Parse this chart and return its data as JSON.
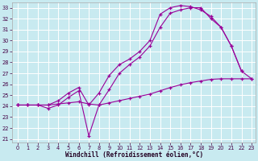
{
  "bg_color": "#c8eaf0",
  "grid_color": "#ffffff",
  "line_color": "#990099",
  "xlabel": "Windchill (Refroidissement éolien,°C)",
  "xlim_min": -0.5,
  "xlim_max": 23.4,
  "ylim_min": 20.7,
  "ylim_max": 33.5,
  "xticks": [
    0,
    1,
    2,
    3,
    4,
    5,
    6,
    7,
    8,
    9,
    10,
    11,
    12,
    13,
    14,
    15,
    16,
    17,
    18,
    19,
    20,
    21,
    22,
    23
  ],
  "yticks": [
    21,
    22,
    23,
    24,
    25,
    26,
    27,
    28,
    29,
    30,
    31,
    32,
    33
  ],
  "line1": {
    "x": [
      0,
      1,
      2,
      3,
      4,
      5,
      6,
      7,
      8,
      9,
      10,
      11,
      12,
      13,
      14,
      15,
      16,
      17,
      18,
      19,
      20,
      21,
      22,
      23
    ],
    "y": [
      24.1,
      24.1,
      24.1,
      24.1,
      24.2,
      24.3,
      24.4,
      24.2,
      24.1,
      24.3,
      24.5,
      24.7,
      24.9,
      25.1,
      25.4,
      25.7,
      25.95,
      26.15,
      26.3,
      26.45,
      26.5,
      26.5,
      26.5,
      26.5
    ]
  },
  "line2": {
    "x": [
      0,
      1,
      2,
      3,
      4,
      5,
      6,
      7,
      8,
      9,
      10,
      11,
      12,
      13,
      14,
      15,
      16,
      17,
      18,
      19,
      20,
      21,
      22
    ],
    "y": [
      24.1,
      24.1,
      24.1,
      23.8,
      24.1,
      24.8,
      25.4,
      21.3,
      24.1,
      25.5,
      27.0,
      27.8,
      28.5,
      29.5,
      31.2,
      32.5,
      32.8,
      33.0,
      33.0,
      32.0,
      31.2,
      29.5,
      27.2
    ]
  },
  "line3": {
    "x": [
      0,
      1,
      2,
      3,
      4,
      5,
      6,
      7,
      8,
      9,
      10,
      11,
      12,
      13,
      14,
      15,
      16,
      17,
      18,
      19,
      20,
      21,
      22,
      23
    ],
    "y": [
      24.1,
      24.1,
      24.1,
      24.1,
      24.5,
      25.2,
      25.7,
      24.1,
      25.2,
      26.8,
      27.8,
      28.3,
      29.0,
      30.0,
      32.4,
      33.0,
      33.2,
      33.1,
      32.8,
      32.2,
      31.2,
      29.5,
      27.2,
      26.5
    ]
  },
  "tick_fontsize": 4.8,
  "xlabel_fontsize": 5.5
}
